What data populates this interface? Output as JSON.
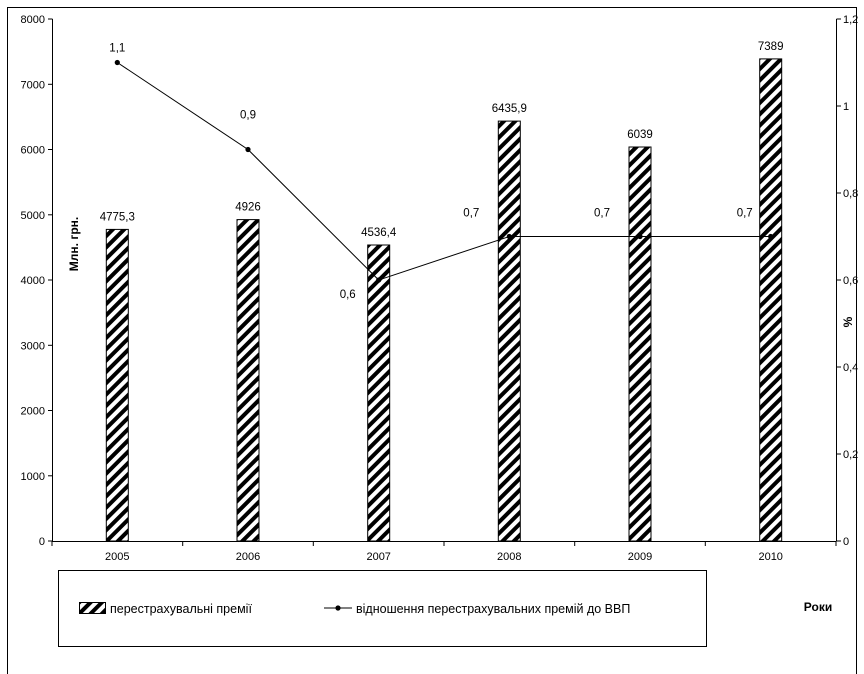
{
  "chart_data": {
    "type": "bar",
    "categories": [
      "2005",
      "2006",
      "2007",
      "2008",
      "2009",
      "2010"
    ],
    "series": [
      {
        "name": "перестрахувальні премії",
        "type": "bar",
        "axis": "left",
        "values": [
          4775.3,
          4926,
          4536.4,
          6435.9,
          6039,
          7389
        ],
        "labels": [
          "4775,3",
          "4926",
          "4536,4",
          "6435,9",
          "6039",
          "7389"
        ]
      },
      {
        "name": "відношення перестрахувальних премій до ВВП",
        "type": "line",
        "axis": "right",
        "values": [
          1.1,
          0.9,
          0.6,
          0.7,
          0.7,
          0.7
        ],
        "labels": [
          "1,1",
          "0,9",
          "0,6",
          "0,7",
          "0,7",
          "0,7"
        ]
      }
    ],
    "xlabel": "Роки",
    "ylabel": "Млн. грн.",
    "y2label": "%",
    "ylim": [
      0,
      8000
    ],
    "y2lim": [
      0,
      1.2
    ],
    "yticks": [
      "0",
      "1000",
      "2000",
      "3000",
      "4000",
      "5000",
      "6000",
      "7000",
      "8000"
    ],
    "y2ticks": [
      "0",
      "0,2",
      "0,4",
      "0,6",
      "0,8",
      "1",
      "1,2"
    ],
    "grid": false,
    "legend_position": "bottom"
  }
}
